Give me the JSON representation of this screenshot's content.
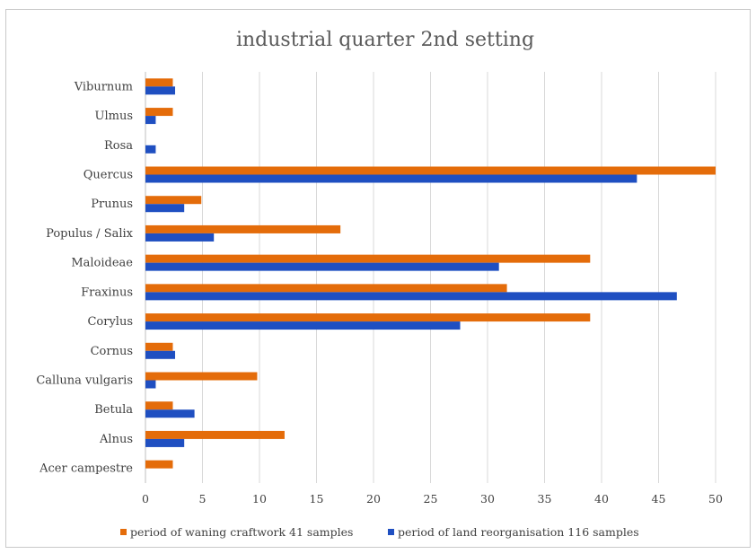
{
  "chart_data": {
    "type": "bar",
    "orientation": "horizontal",
    "title": "industrial quarter 2nd setting",
    "xlabel": "",
    "ylabel": "",
    "xlim": [
      0,
      50
    ],
    "xticks": [
      0,
      5,
      10,
      15,
      20,
      25,
      30,
      35,
      40,
      45,
      50
    ],
    "grid": true,
    "legend_position": "bottom",
    "categories": [
      "Viburnum",
      "Ulmus",
      "Rosa",
      "Quercus",
      "Prunus",
      "Populus / Salix",
      "Maloideae",
      "Fraxinus",
      "Corylus",
      "Cornus",
      "Calluna vulgaris",
      "Betula",
      "Alnus",
      "Acer campestre"
    ],
    "series": [
      {
        "name": "period of waning craftwork 41 samples",
        "color": "#e46c0a",
        "values": [
          2.4,
          2.4,
          0,
          50,
          4.9,
          17.1,
          39,
          31.7,
          39,
          2.4,
          9.8,
          2.4,
          12.2,
          2.4
        ]
      },
      {
        "name": "period of land reorganisation 116 samples",
        "color": "#1f4fc1",
        "values": [
          2.6,
          0.9,
          0.9,
          43.1,
          3.4,
          6,
          31,
          46.6,
          27.6,
          2.6,
          0.9,
          4.3,
          3.4,
          0
        ]
      }
    ]
  }
}
